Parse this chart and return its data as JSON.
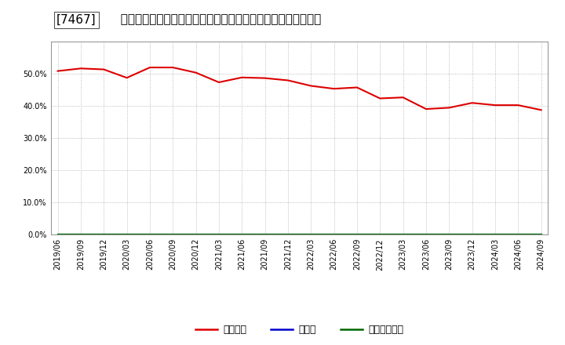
{
  "title": "[7467]  自己資本、のれん、繰延税金資産の総資産に対する比率の推移",
  "x_labels": [
    "2019/06",
    "2019/09",
    "2019/12",
    "2020/03",
    "2020/06",
    "2020/09",
    "2020/12",
    "2021/03",
    "2021/06",
    "2021/09",
    "2021/12",
    "2022/03",
    "2022/06",
    "2022/09",
    "2022/12",
    "2023/03",
    "2023/06",
    "2023/09",
    "2023/12",
    "2024/03",
    "2024/06",
    "2024/09"
  ],
  "equity_ratio": [
    0.508,
    0.516,
    0.513,
    0.487,
    0.519,
    0.519,
    0.503,
    0.473,
    0.488,
    0.486,
    0.479,
    0.462,
    0.453,
    0.457,
    0.423,
    0.426,
    0.39,
    0.394,
    0.409,
    0.402,
    0.402,
    0.387
  ],
  "goodwill_ratio": [
    0,
    0,
    0,
    0,
    0,
    0,
    0,
    0,
    0,
    0,
    0,
    0,
    0,
    0,
    0,
    0,
    0,
    0,
    0,
    0,
    0,
    0
  ],
  "deferred_tax_ratio": [
    0,
    0,
    0,
    0,
    0,
    0,
    0,
    0,
    0,
    0,
    0,
    0,
    0,
    0,
    0,
    0,
    0,
    0,
    0,
    0,
    0,
    0
  ],
  "equity_color": "#dd0000",
  "goodwill_color": "#0000cc",
  "deferred_tax_color": "#006600",
  "background_color": "#ffffff",
  "plot_bg_color": "#ffffff",
  "grid_color": "#aaaaaa",
  "ylim": [
    0.0,
    0.6
  ],
  "yticks": [
    0.0,
    0.1,
    0.2,
    0.3,
    0.4,
    0.5
  ],
  "legend_labels": [
    "自己資本",
    "のれん",
    "繰延税金資産"
  ],
  "title_fontsize": 11,
  "tick_fontsize": 7,
  "legend_fontsize": 9,
  "title_prefix": "[7467]",
  "title_body": "自己資本、のれん、繰延税金資産の総資産に対する比率の推移"
}
